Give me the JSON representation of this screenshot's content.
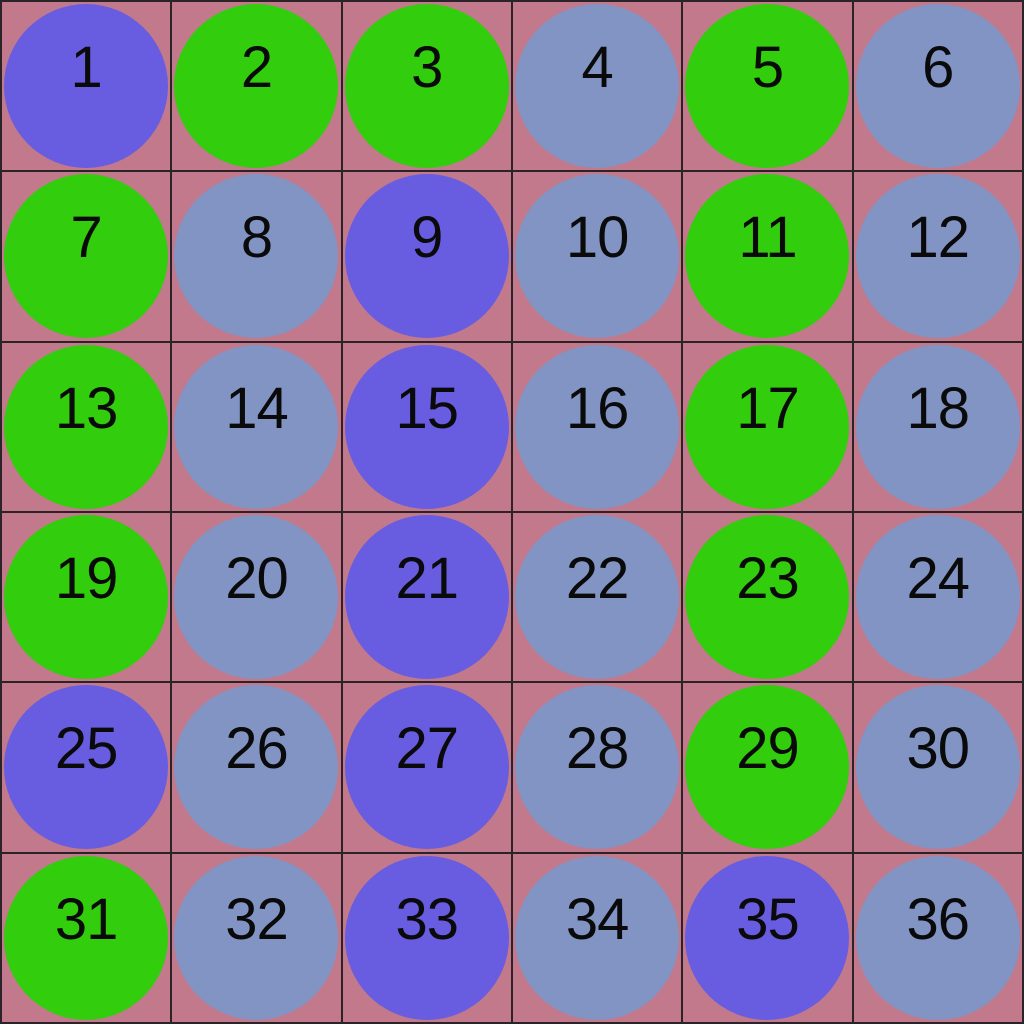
{
  "board": {
    "rows": 6,
    "cols": 6,
    "background_color": "#c1798b",
    "grid_line_color": "#2b2328",
    "number_color": "#0a0a0a"
  },
  "circle_colors": {
    "purple": "#685ce0",
    "green": "#32cd0c",
    "slate_blue": "#8294c4"
  },
  "cells": [
    {
      "number": "1",
      "color": "purple"
    },
    {
      "number": "2",
      "color": "green"
    },
    {
      "number": "3",
      "color": "green"
    },
    {
      "number": "4",
      "color": "slate_blue"
    },
    {
      "number": "5",
      "color": "green"
    },
    {
      "number": "6",
      "color": "slate_blue"
    },
    {
      "number": "7",
      "color": "green"
    },
    {
      "number": "8",
      "color": "slate_blue"
    },
    {
      "number": "9",
      "color": "purple"
    },
    {
      "number": "10",
      "color": "slate_blue"
    },
    {
      "number": "11",
      "color": "green"
    },
    {
      "number": "12",
      "color": "slate_blue"
    },
    {
      "number": "13",
      "color": "green"
    },
    {
      "number": "14",
      "color": "slate_blue"
    },
    {
      "number": "15",
      "color": "purple"
    },
    {
      "number": "16",
      "color": "slate_blue"
    },
    {
      "number": "17",
      "color": "green"
    },
    {
      "number": "18",
      "color": "slate_blue"
    },
    {
      "number": "19",
      "color": "green"
    },
    {
      "number": "20",
      "color": "slate_blue"
    },
    {
      "number": "21",
      "color": "purple"
    },
    {
      "number": "22",
      "color": "slate_blue"
    },
    {
      "number": "23",
      "color": "green"
    },
    {
      "number": "24",
      "color": "slate_blue"
    },
    {
      "number": "25",
      "color": "purple"
    },
    {
      "number": "26",
      "color": "slate_blue"
    },
    {
      "number": "27",
      "color": "purple"
    },
    {
      "number": "28",
      "color": "slate_blue"
    },
    {
      "number": "29",
      "color": "green"
    },
    {
      "number": "30",
      "color": "slate_blue"
    },
    {
      "number": "31",
      "color": "green"
    },
    {
      "number": "32",
      "color": "slate_blue"
    },
    {
      "number": "33",
      "color": "purple"
    },
    {
      "number": "34",
      "color": "slate_blue"
    },
    {
      "number": "35",
      "color": "purple"
    },
    {
      "number": "36",
      "color": "slate_blue"
    }
  ]
}
